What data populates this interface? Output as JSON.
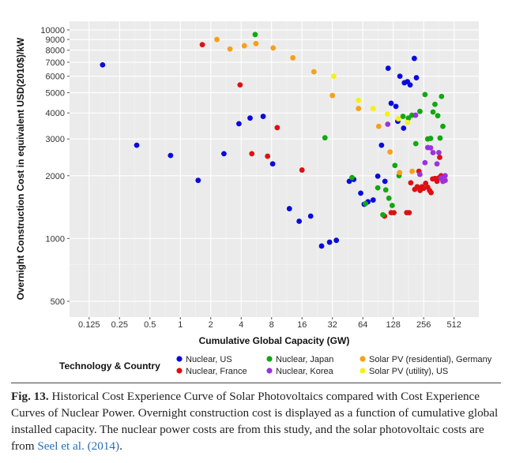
{
  "chart_data": {
    "type": "scatter",
    "x_scale": "log2",
    "y_scale": "log",
    "xlim": [
      0.08,
      900
    ],
    "ylim": [
      420,
      11000
    ],
    "xlabel": "Cumulative Global Capacity (GW)",
    "ylabel": "Overnight Construction Cost in equivalent USD(2010$)/kW",
    "x_ticks": [
      0.125,
      0.25,
      0.5,
      1,
      2,
      4,
      8,
      16,
      32,
      64,
      128,
      256,
      512
    ],
    "x_tick_labels": [
      "0.125",
      "0.25",
      "0.5",
      "1",
      "2",
      "4",
      "8",
      "16",
      "32",
      "64",
      "128",
      "256",
      "512"
    ],
    "y_ticks": [
      500,
      1000,
      2000,
      3000,
      4000,
      5000,
      6000,
      7000,
      8000,
      9000,
      10000
    ],
    "y_tick_labels": [
      "500",
      "1000",
      "2000",
      "3000",
      "4000",
      "5000",
      "6000",
      "7000",
      "8000",
      "9000",
      "10000"
    ],
    "grid": true,
    "legend_title": "Technology & Country",
    "legend_position": "bottom",
    "series": [
      {
        "name": "Nuclear, US",
        "color": "#0a0adc",
        "points": [
          [
            0.17,
            6800
          ],
          [
            0.37,
            2800
          ],
          [
            0.8,
            2500
          ],
          [
            1.5,
            1900
          ],
          [
            2.7,
            2550
          ],
          [
            3.8,
            3550
          ],
          [
            4.9,
            3780
          ],
          [
            6.6,
            3850
          ],
          [
            8.2,
            2280
          ],
          [
            12,
            1390
          ],
          [
            15,
            1210
          ],
          [
            19.5,
            1280
          ],
          [
            25,
            920
          ],
          [
            30,
            960
          ],
          [
            35,
            980
          ],
          [
            47,
            1880
          ],
          [
            52,
            1920
          ],
          [
            61,
            1650
          ],
          [
            66,
            1460
          ],
          [
            72,
            1500
          ],
          [
            81,
            1530
          ],
          [
            90,
            1990
          ],
          [
            98,
            2800
          ],
          [
            106,
            1880
          ],
          [
            114,
            6550
          ],
          [
            122,
            4450
          ],
          [
            136,
            4300
          ],
          [
            149,
            6000
          ],
          [
            165,
            5580
          ],
          [
            177,
            5650
          ],
          [
            188,
            5450
          ],
          [
            207,
            7300
          ],
          [
            217,
            5900
          ],
          [
            162,
            3380
          ],
          [
            142,
            3650
          ]
        ]
      },
      {
        "name": "Nuclear, France",
        "color": "#dd1111",
        "points": [
          [
            1.65,
            8500
          ],
          [
            3.9,
            5450
          ],
          [
            5.1,
            2550
          ],
          [
            7.3,
            2480
          ],
          [
            9.1,
            3400
          ],
          [
            16,
            2130
          ],
          [
            105,
            1280
          ],
          [
            122,
            1330
          ],
          [
            130,
            1330
          ],
          [
            174,
            1330
          ],
          [
            184,
            1330
          ],
          [
            191,
            1850
          ],
          [
            209,
            1720
          ],
          [
            221,
            1770
          ],
          [
            236,
            1700
          ],
          [
            246,
            1770
          ],
          [
            256,
            1740
          ],
          [
            268,
            1840
          ],
          [
            281,
            1760
          ],
          [
            293,
            1700
          ],
          [
            303,
            1660
          ],
          [
            314,
            1930
          ],
          [
            331,
            1940
          ],
          [
            347,
            1880
          ],
          [
            360,
            1950
          ],
          [
            369,
            2450
          ],
          [
            381,
            2000
          ],
          [
            398,
            1880
          ],
          [
            230,
            2100
          ]
        ]
      },
      {
        "name": "Nuclear, Japan",
        "color": "#11a811",
        "points": [
          [
            5.5,
            9500
          ],
          [
            27,
            3040
          ],
          [
            50,
            1960
          ],
          [
            68,
            1470
          ],
          [
            90,
            1750
          ],
          [
            101,
            1300
          ],
          [
            108,
            1710
          ],
          [
            116,
            1560
          ],
          [
            125,
            1440
          ],
          [
            133,
            2240
          ],
          [
            146,
            2000
          ],
          [
            160,
            3850
          ],
          [
            181,
            3780
          ],
          [
            196,
            3900
          ],
          [
            214,
            2850
          ],
          [
            235,
            4070
          ],
          [
            264,
            4900
          ],
          [
            281,
            3000
          ],
          [
            300,
            3020
          ],
          [
            317,
            4040
          ],
          [
            331,
            4400
          ],
          [
            353,
            3880
          ],
          [
            372,
            3030
          ],
          [
            385,
            4800
          ],
          [
            397,
            3450
          ]
        ]
      },
      {
        "name": "Nuclear, Korea",
        "color": "#9a33dd",
        "points": [
          [
            113,
            3530
          ],
          [
            213,
            3900
          ],
          [
            235,
            2030
          ],
          [
            264,
            2310
          ],
          [
            281,
            2730
          ],
          [
            300,
            2720
          ],
          [
            317,
            2580
          ],
          [
            347,
            2280
          ],
          [
            362,
            2580
          ],
          [
            381,
            1950
          ],
          [
            397,
            1880
          ],
          [
            418,
            2000
          ],
          [
            418,
            1900
          ]
        ]
      },
      {
        "name": "Solar PV (residential), Germany",
        "color": "#f6a01a",
        "points": [
          [
            2.3,
            9000
          ],
          [
            3.1,
            8100
          ],
          [
            4.3,
            8400
          ],
          [
            5.6,
            8600
          ],
          [
            8.3,
            8200
          ],
          [
            13,
            7350
          ],
          [
            21,
            6300
          ],
          [
            32,
            4850
          ],
          [
            58,
            4200
          ],
          [
            92,
            3450
          ],
          [
            119,
            2600
          ],
          [
            148,
            2070
          ],
          [
            197,
            2100
          ]
        ]
      },
      {
        "name": "Solar PV (utility), US",
        "color": "#f5f016",
        "points": [
          [
            33,
            6000
          ],
          [
            58,
            4600
          ],
          [
            81,
            4200
          ],
          [
            112,
            3950
          ],
          [
            144,
            3750
          ],
          [
            178,
            3600
          ]
        ]
      }
    ]
  },
  "caption": {
    "label": "Fig. 13.",
    "text": " Historical Cost Experience Curve of Solar Photovoltaics compared with Cost Experience Curves of Nuclear Power. Overnight construction cost is displayed as a function of cumulative global installed capacity. The nuclear power costs are from this study, and the solar photovoltaic costs are from ",
    "citation": "Seel et al. (2014)",
    "end": "."
  }
}
